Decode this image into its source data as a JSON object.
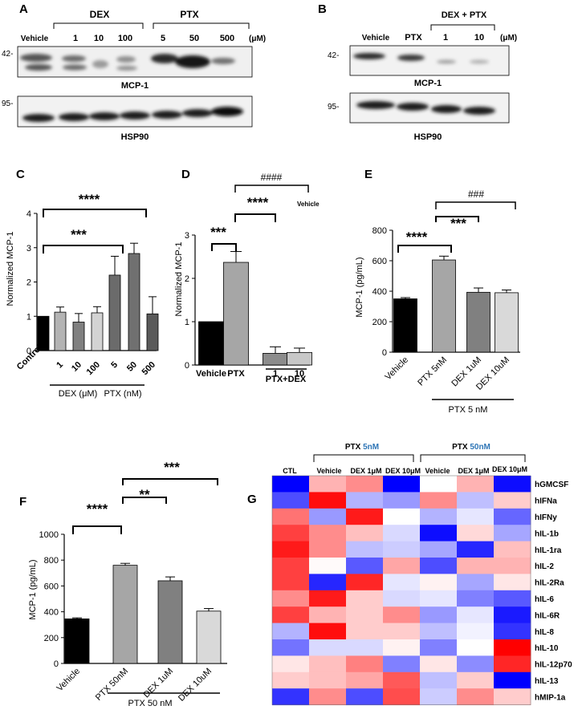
{
  "panels": {
    "A": {
      "letter": "A",
      "dex_label": "DEX",
      "ptx_label": "PTX",
      "lanes": [
        "Vehicle",
        "1",
        "10",
        "100",
        "5",
        "50",
        "500"
      ],
      "unit": "(μM)",
      "blot1_label": "MCP-1",
      "blot1_mw": "42-",
      "blot2_label": "HSP90",
      "blot2_mw": "95-"
    },
    "B": {
      "letter": "B",
      "combo_label": "DEX + PTX",
      "lanes": [
        "Vehicle",
        "PTX",
        "1",
        "10"
      ],
      "unit": "(μM)",
      "blot1_label": "MCP-1",
      "blot1_mw": "42-",
      "blot2_label": "HSP90",
      "blot2_mw": "95-"
    },
    "C": {
      "letter": "C",
      "stars1": "****",
      "stars2": "***",
      "group1": "DEX (μM)",
      "group2": "PTX (nM)"
    },
    "D": {
      "letter": "D",
      "hash": "####",
      "hash_note": "Vehicle",
      "stars1": "****",
      "stars2": "***",
      "group": "PTX+DEX"
    },
    "E": {
      "letter": "E",
      "hash": "###",
      "stars1": "***",
      "stars2": "****",
      "group": "PTX 5 nM"
    },
    "F": {
      "letter": "F",
      "stars1": "***",
      "stars2": "**",
      "stars3": "****",
      "group": "PTX 50 nM"
    },
    "G": {
      "letter": "G",
      "ctl": "CTL",
      "group1_prefix": "PTX ",
      "group1_conc": "5nM",
      "group2_prefix": "PTX ",
      "group2_conc": "50nM",
      "conc_color": "#2e75b6",
      "columns": [
        "Vehicle",
        "DEX 1μM",
        "DEX 10μM",
        "Vehicle",
        "DEX 1μM",
        "DEX 10μM"
      ]
    }
  },
  "chart_data": [
    {
      "panel": "C",
      "type": "bar",
      "categories": [
        "Control",
        "1",
        "10",
        "100",
        "5",
        "50",
        "500"
      ],
      "values": [
        1.0,
        1.12,
        0.83,
        1.1,
        2.2,
        2.83,
        1.07
      ],
      "errors": [
        0,
        0.15,
        0.25,
        0.18,
        0.55,
        0.3,
        0.5
      ],
      "colors": [
        "#000000",
        "#b3b3b3",
        "#808080",
        "#d3d3d3",
        "#6b6b6b",
        "#707070",
        "#5a5a5a"
      ],
      "ylabel": "Normalized MCP-1",
      "ylim": [
        0,
        4
      ],
      "yticks": [
        0,
        1,
        2,
        3,
        4
      ]
    },
    {
      "panel": "D",
      "type": "bar",
      "categories": [
        "Vehicle",
        "PTX",
        "1",
        "10"
      ],
      "values": [
        1.0,
        2.37,
        0.27,
        0.29
      ],
      "errors": [
        0,
        0.25,
        0.15,
        0.1
      ],
      "colors": [
        "#000000",
        "#a6a6a6",
        "#8c8c8c",
        "#c8c8c8"
      ],
      "ylabel": "Normalized MCP-1",
      "ylim": [
        0,
        3
      ],
      "yticks": [
        0,
        1,
        2,
        3
      ]
    },
    {
      "panel": "E",
      "type": "bar",
      "categories": [
        "Vehicle",
        "PTX 5nM",
        "DEX 1uM",
        "DEX 10uM"
      ],
      "values": [
        350,
        605,
        393,
        390
      ],
      "errors": [
        8,
        25,
        28,
        18
      ],
      "colors": [
        "#000000",
        "#a6a6a6",
        "#808080",
        "#d9d9d9"
      ],
      "ylabel": "MCP-1 (pg/mL)",
      "ylim": [
        0,
        800
      ],
      "yticks": [
        0,
        200,
        400,
        600,
        800
      ]
    },
    {
      "panel": "F",
      "type": "bar",
      "categories": [
        "Vehicle",
        "PTX 50nM",
        "DEX 1uM",
        "DEX 10uM"
      ],
      "values": [
        345,
        760,
        640,
        405
      ],
      "errors": [
        8,
        15,
        30,
        20
      ],
      "colors": [
        "#000000",
        "#a6a6a6",
        "#808080",
        "#d9d9d9"
      ],
      "ylabel": "MCP-1 (pg/mL)",
      "ylim": [
        0,
        1000
      ],
      "yticks": [
        0,
        200,
        400,
        600,
        800,
        1000
      ]
    },
    {
      "panel": "G",
      "type": "heatmap",
      "columns": [
        "CTL",
        "Vehicle",
        "DEX 1μM",
        "DEX 10μM",
        "Vehicle",
        "DEX 1μM",
        "DEX 10μM"
      ],
      "rows": [
        "hGMCSF",
        "hIFNa",
        "hIFNy",
        "hIL-1b",
        "hIL-1ra",
        "hIL-2",
        "hIL-2Ra",
        "hIL-6",
        "hIL-6R",
        "hIL-8",
        "hIL-10",
        "hIL-12p70",
        "hIL-13",
        "hMIP-1a"
      ],
      "values": [
        [
          -1.0,
          0.3,
          0.45,
          -1.0,
          0.0,
          0.3,
          -0.95
        ],
        [
          -0.7,
          0.95,
          -0.3,
          -0.4,
          0.45,
          -0.25,
          0.2
        ],
        [
          0.55,
          -0.4,
          0.9,
          0.0,
          -0.3,
          -0.1,
          -0.6
        ],
        [
          0.75,
          0.45,
          0.25,
          -0.15,
          -0.95,
          0.15,
          -0.35
        ],
        [
          0.9,
          0.45,
          -0.25,
          -0.2,
          -0.35,
          -0.85,
          0.25
        ],
        [
          0.75,
          0.02,
          -0.65,
          0.35,
          -0.7,
          0.3,
          0.3
        ],
        [
          0.75,
          -0.85,
          0.85,
          -0.1,
          0.05,
          -0.35,
          0.1
        ],
        [
          0.45,
          0.9,
          0.2,
          -0.15,
          -0.1,
          -0.5,
          -0.65
        ],
        [
          0.75,
          0.3,
          0.2,
          0.45,
          -0.4,
          -0.1,
          -0.9
        ],
        [
          -0.3,
          0.95,
          0.2,
          0.2,
          -0.25,
          -0.05,
          -0.8
        ],
        [
          -0.55,
          -0.15,
          -0.15,
          0.05,
          -0.5,
          0.0,
          1.0
        ],
        [
          0.1,
          0.25,
          0.5,
          -0.5,
          0.1,
          -0.45,
          0.85
        ],
        [
          0.2,
          0.25,
          0.35,
          0.65,
          -0.25,
          0.2,
          -1.0
        ],
        [
          -0.8,
          0.45,
          -0.7,
          0.7,
          -0.2,
          0.45,
          0.2
        ]
      ],
      "colormap": [
        "#0000ff",
        "#ffffff",
        "#ff0000"
      ],
      "vlim": [
        -1,
        1
      ]
    }
  ]
}
